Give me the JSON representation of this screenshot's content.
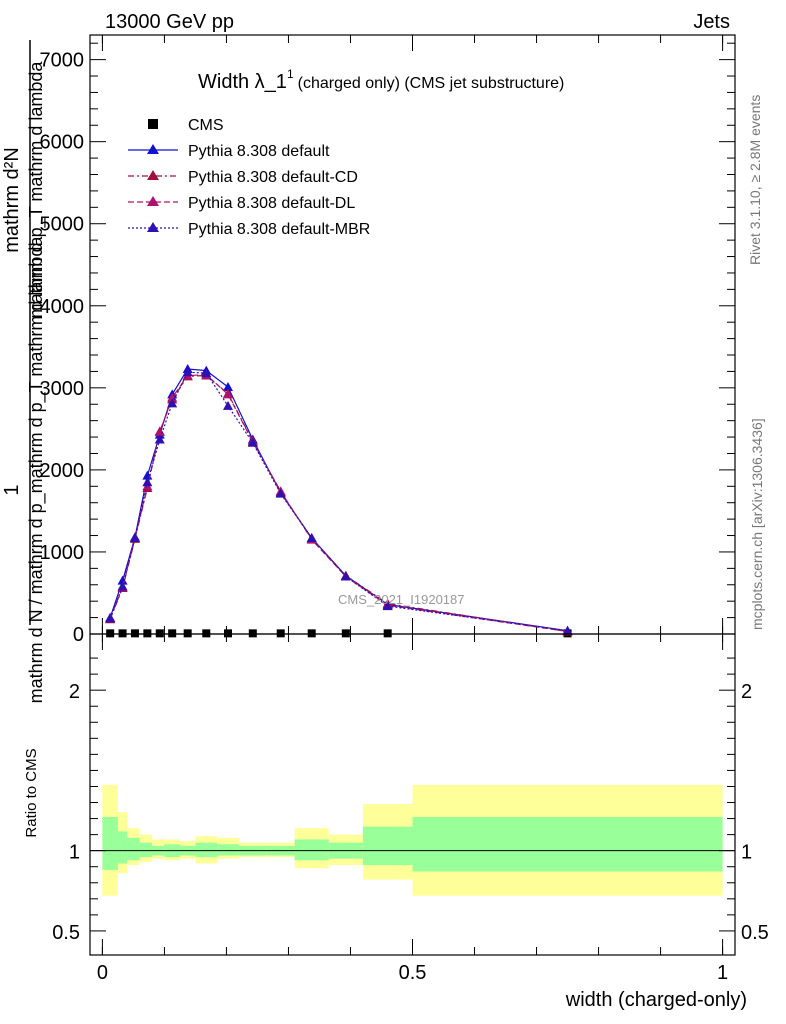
{
  "header": {
    "left": "13000 GeV pp",
    "right": "Jets"
  },
  "side_text": {
    "rivet": "Rivet 3.1.10, ≥ 2.8M events",
    "mcplots": "mcplots.cern.ch [arXiv:1306.3436]"
  },
  "watermark": "CMS_2021_I1920187",
  "chart_data": [
    {
      "type": "line",
      "title": "Width λ_1",
      "title_sup": "1",
      "subtitle": "(charged only) (CMS jet substructure)",
      "xlabel": "width (charged-only)",
      "ylabel_numer": "1",
      "ylabel_denom": "mathrm d N / mathrm d p_mathrm d p_T mathrm d lambda",
      "ylabel_numer2": "mathrm d²N",
      "ylabel_denom2": "mathrm d p_T mathrm d lambda",
      "xlim": [
        -0.02,
        1.02
      ],
      "ylim": [
        0,
        7300
      ],
      "yticks": [
        0,
        1000,
        2000,
        3000,
        4000,
        5000,
        6000,
        7000
      ],
      "ytick_labels": [
        "0",
        "1000",
        "2000",
        "3000",
        "4000",
        "5000",
        "6000",
        "7000"
      ],
      "legend_position": "top-left",
      "legend": [
        "CMS",
        "Pythia 8.308 default",
        "Pythia 8.308 default-CD",
        "Pythia 8.308 default-DL",
        "Pythia 8.308 default-MBR"
      ],
      "x": [
        0.0125,
        0.0325,
        0.0525,
        0.0725,
        0.0925,
        0.1125,
        0.1375,
        0.1675,
        0.2025,
        0.2425,
        0.2875,
        0.3375,
        0.3925,
        0.46,
        0.75
      ],
      "series": [
        {
          "name": "CMS",
          "color": "#000000",
          "marker": "square",
          "values": [
            8,
            8,
            8,
            8,
            8,
            8,
            8,
            8,
            8,
            8,
            8,
            8,
            8,
            8,
            8
          ]
        },
        {
          "name": "Pythia 8.308 default",
          "color": "#1010d0",
          "marker": "triangle",
          "dash": "solid",
          "values": [
            200,
            650,
            1180,
            1930,
            2430,
            2920,
            3230,
            3210,
            3010,
            2370,
            1720,
            1170,
            710,
            360,
            40
          ]
        },
        {
          "name": "Pythia 8.308 default-CD",
          "color": "#a0103a",
          "marker": "triangle",
          "dash": "dashdot",
          "values": [
            180,
            560,
            1160,
            1780,
            2470,
            2860,
            3140,
            3150,
            2930,
            2350,
            1730,
            1160,
            710,
            370,
            30
          ]
        },
        {
          "name": "Pythia 8.308 default-DL",
          "color": "#b01070",
          "marker": "triangle",
          "dash": "dash",
          "values": [
            190,
            570,
            1170,
            1800,
            2460,
            2880,
            3150,
            3160,
            2920,
            2340,
            1740,
            1150,
            700,
            350,
            30
          ]
        },
        {
          "name": "Pythia 8.308 default-MBR",
          "color": "#3010b0",
          "marker": "triangle",
          "dash": "dot",
          "values": [
            190,
            580,
            1170,
            1850,
            2370,
            2810,
            3190,
            3180,
            2780,
            2330,
            1710,
            1170,
            700,
            340,
            40
          ]
        }
      ]
    },
    {
      "type": "area",
      "ylabel": "Ratio to CMS",
      "xlim": [
        -0.02,
        1.02
      ],
      "ylim": [
        0.35,
        2.35
      ],
      "xticks": [
        0,
        0.5,
        1
      ],
      "xtick_labels": [
        "0",
        "0.5",
        "1"
      ],
      "yticks": [
        0.5,
        1,
        2
      ],
      "ytick_labels": [
        "0.5",
        "1",
        "2"
      ],
      "reference": 1,
      "bin_edges": [
        0.0,
        0.025,
        0.04,
        0.06,
        0.08,
        0.1,
        0.125,
        0.15,
        0.185,
        0.22,
        0.265,
        0.31,
        0.365,
        0.42,
        0.5,
        1.0
      ],
      "band_outer_low": [
        0.72,
        0.86,
        0.91,
        0.93,
        0.95,
        0.94,
        0.95,
        0.92,
        0.95,
        0.96,
        0.96,
        0.89,
        0.91,
        0.82,
        0.72
      ],
      "band_outer_high": [
        1.41,
        1.24,
        1.14,
        1.1,
        1.07,
        1.07,
        1.06,
        1.09,
        1.08,
        1.05,
        1.05,
        1.14,
        1.1,
        1.29,
        1.41
      ],
      "band_inner_low": [
        0.88,
        0.92,
        0.94,
        0.96,
        0.97,
        0.96,
        0.97,
        0.96,
        0.97,
        0.97,
        0.97,
        0.94,
        0.95,
        0.91,
        0.87
      ],
      "band_inner_high": [
        1.21,
        1.12,
        1.08,
        1.05,
        1.03,
        1.04,
        1.03,
        1.05,
        1.04,
        1.03,
        1.03,
        1.07,
        1.05,
        1.15,
        1.21
      ],
      "band_colors": {
        "outer": "#ffff99",
        "inner": "#99ff99"
      }
    }
  ]
}
